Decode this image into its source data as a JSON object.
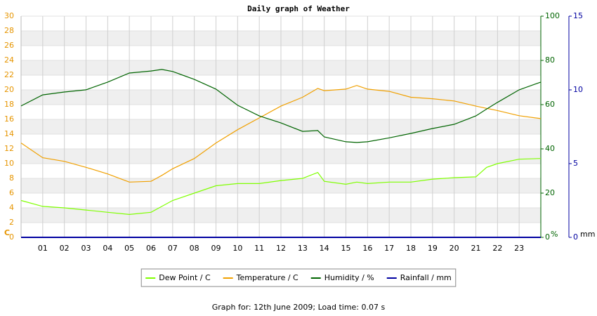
{
  "chart_data": {
    "type": "line",
    "title": "Daily graph of Weather",
    "footer": "Graph for: 12th June 2009; Load time: 0.07 s",
    "y_label": "C",
    "y2_label": "%",
    "y3_label": "mm",
    "xlim": [
      0,
      24
    ],
    "xticks": [
      {
        "value": 1,
        "label": "01"
      },
      {
        "value": 2,
        "label": "02"
      },
      {
        "value": 3,
        "label": "03"
      },
      {
        "value": 4,
        "label": "04"
      },
      {
        "value": 5,
        "label": "05"
      },
      {
        "value": 6,
        "label": "06"
      },
      {
        "value": 7,
        "label": "07"
      },
      {
        "value": 8,
        "label": "08"
      },
      {
        "value": 9,
        "label": "09"
      },
      {
        "value": 10,
        "label": "10"
      },
      {
        "value": 11,
        "label": "11"
      },
      {
        "value": 12,
        "label": "12"
      },
      {
        "value": 13,
        "label": "13"
      },
      {
        "value": 14,
        "label": "14"
      },
      {
        "value": 15,
        "label": "15"
      },
      {
        "value": 16,
        "label": "16"
      },
      {
        "value": 17,
        "label": "17"
      },
      {
        "value": 18,
        "label": "18"
      },
      {
        "value": 19,
        "label": "19"
      },
      {
        "value": 20,
        "label": "20"
      },
      {
        "value": 21,
        "label": "21"
      },
      {
        "value": 22,
        "label": "22"
      },
      {
        "value": 23,
        "label": "23"
      }
    ],
    "ylim": [
      0,
      30
    ],
    "yticks": [
      0,
      2,
      4,
      6,
      8,
      10,
      12,
      14,
      16,
      18,
      20,
      22,
      24,
      26,
      28,
      30
    ],
    "y_color": "#e69500",
    "y2lim": [
      0,
      100
    ],
    "y2ticks": [
      0,
      20,
      40,
      60,
      80,
      100
    ],
    "y2_color": "#006400",
    "y3lim": [
      0,
      15
    ],
    "y3ticks": [
      0,
      5,
      10,
      15
    ],
    "y3_color": "#0000a0",
    "grid": true,
    "x": [
      0,
      1,
      2,
      3,
      4,
      5,
      6,
      6.5,
      7,
      8,
      9,
      10,
      11,
      12,
      13,
      13.7,
      14,
      15,
      15.5,
      16,
      17,
      18,
      19,
      20,
      21,
      21.5,
      22,
      23,
      24
    ],
    "series": [
      {
        "name": "Dew Point / C",
        "color": "#7fff00",
        "axis": "y",
        "values": [
          5.0,
          4.2,
          4.0,
          3.7,
          3.4,
          3.1,
          3.4,
          4.2,
          5.0,
          6.0,
          7.0,
          7.3,
          7.3,
          7.7,
          8.0,
          8.8,
          7.6,
          7.2,
          7.5,
          7.3,
          7.5,
          7.5,
          7.9,
          8.1,
          8.2,
          9.5,
          10.0,
          10.6,
          10.7
        ]
      },
      {
        "name": "Temperature / C",
        "color": "#f0a000",
        "axis": "y",
        "values": [
          12.8,
          10.8,
          10.3,
          9.5,
          8.6,
          7.5,
          7.6,
          8.4,
          9.3,
          10.7,
          12.8,
          14.6,
          16.2,
          17.8,
          19.0,
          20.2,
          19.9,
          20.1,
          20.6,
          20.1,
          19.8,
          19.0,
          18.8,
          18.5,
          17.8,
          17.5,
          17.2,
          16.5,
          16.1
        ]
      },
      {
        "name": "Humidity / %",
        "color": "#006400",
        "axis": "y2",
        "values": [
          59.4,
          64.4,
          65.7,
          66.7,
          70.2,
          74.3,
          75.2,
          75.9,
          75.0,
          71.4,
          67.0,
          59.7,
          54.9,
          51.7,
          47.9,
          48.3,
          45.4,
          43.2,
          42.9,
          43.2,
          45.0,
          47.0,
          49.2,
          51.1,
          54.9,
          58.0,
          61.0,
          66.7,
          70.2
        ]
      },
      {
        "name": "Rainfall / mm",
        "color": "#0000a0",
        "axis": "y3",
        "values": [
          0,
          0,
          0,
          0,
          0,
          0,
          0,
          0,
          0,
          0,
          0,
          0,
          0,
          0,
          0,
          0,
          0,
          0,
          0,
          0,
          0,
          0,
          0,
          0,
          0,
          0,
          0,
          0,
          0
        ]
      }
    ]
  }
}
